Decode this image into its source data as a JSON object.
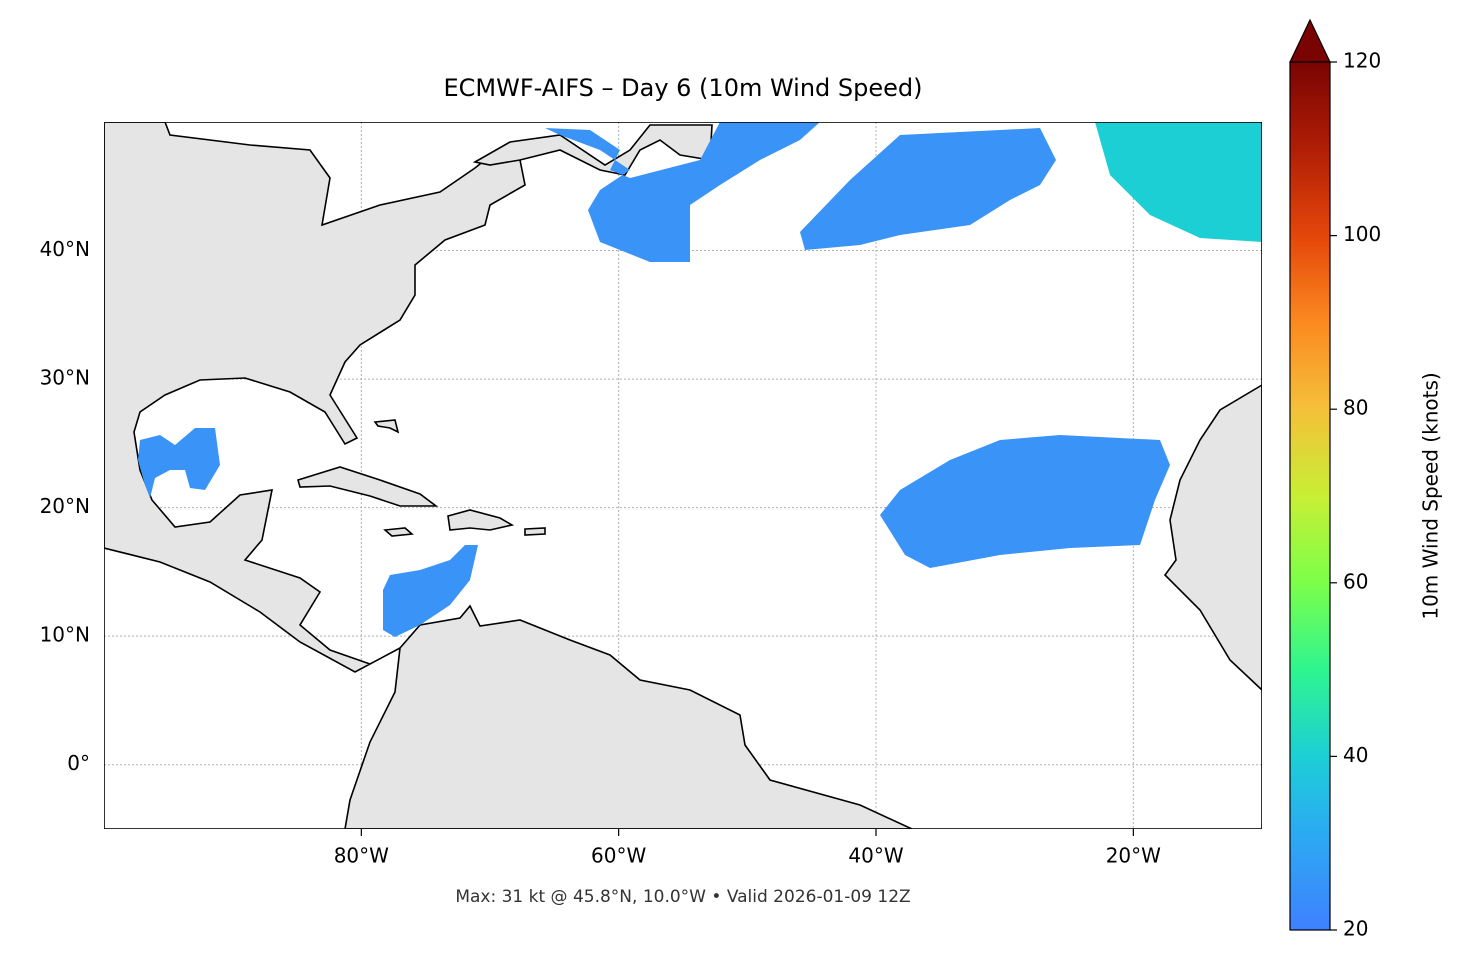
{
  "chart_data": {
    "type": "map",
    "title": "ECMWF-AIFS – Day 6 (10m Wind Speed)",
    "annotation": "Max: 31 kt @ 45.8°N, 10.0°W • Valid 2026-01-09 12Z",
    "xlim": [
      -100,
      -10
    ],
    "ylim": [
      -5,
      50
    ],
    "xticks": [
      {
        "value": -80,
        "label": "80°W"
      },
      {
        "value": -60,
        "label": "60°W"
      },
      {
        "value": -40,
        "label": "40°W"
      },
      {
        "value": -20,
        "label": "20°W"
      }
    ],
    "yticks": [
      {
        "value": 0,
        "label": "0°"
      },
      {
        "value": 10,
        "label": "10°N"
      },
      {
        "value": 20,
        "label": "20°N"
      },
      {
        "value": 30,
        "label": "30°N"
      },
      {
        "value": 40,
        "label": "40°N"
      }
    ],
    "grid": true,
    "colorbar": {
      "label": "10m Wind Speed (knots)",
      "lim": [
        20,
        120
      ],
      "ticks": [
        20,
        40,
        60,
        80,
        100,
        120
      ]
    }
  }
}
